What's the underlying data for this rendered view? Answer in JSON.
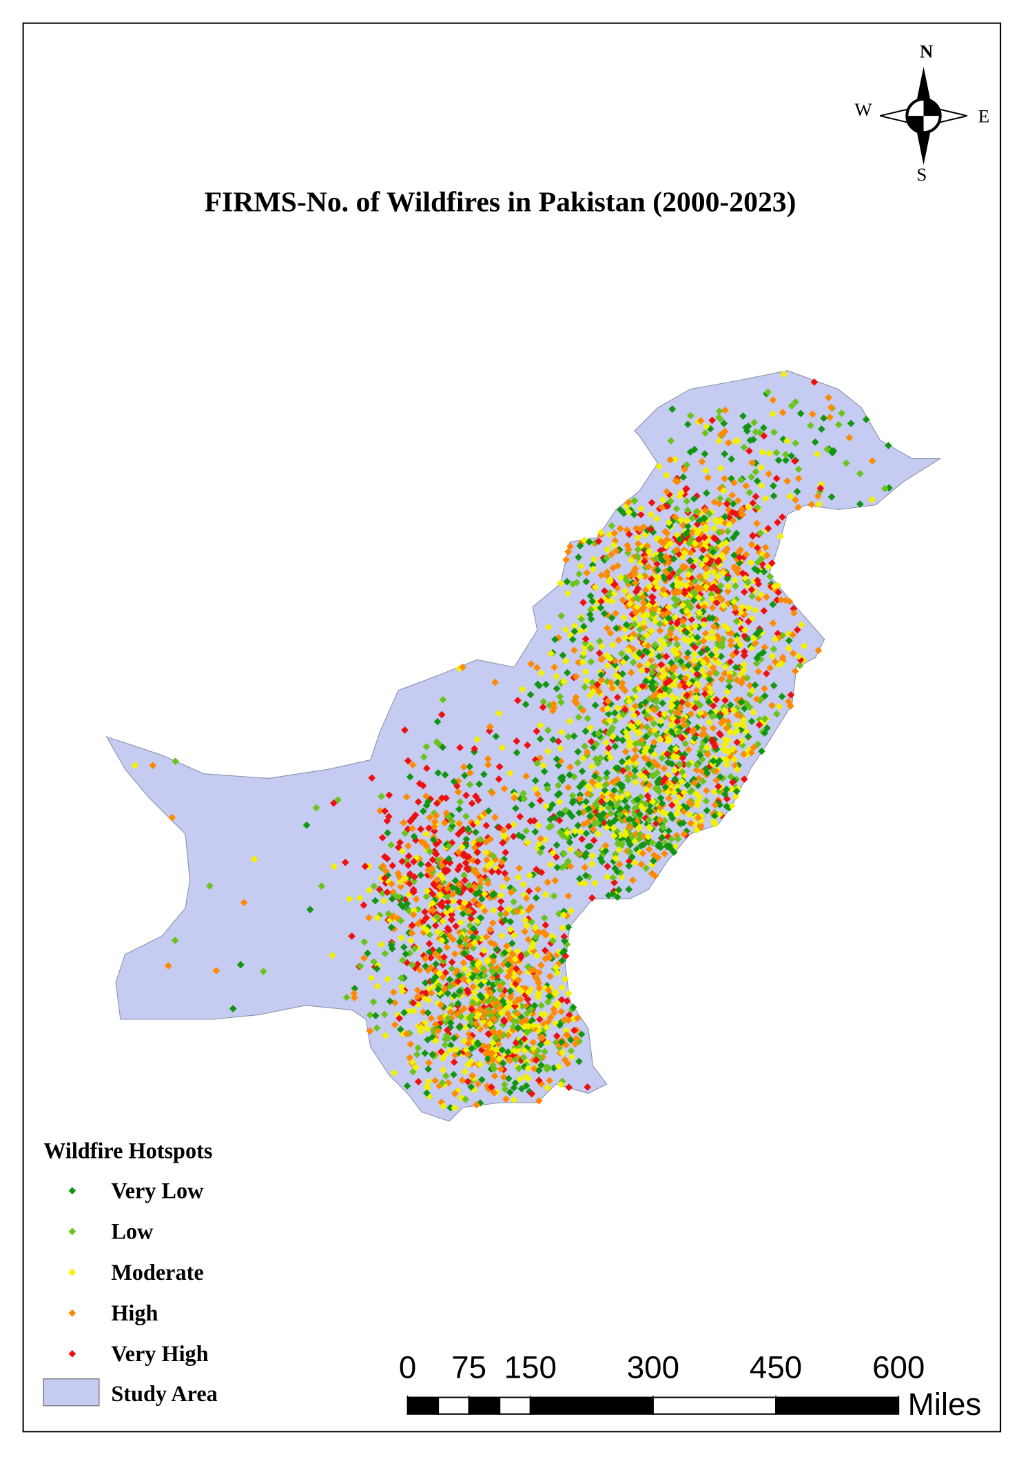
{
  "title": "FIRMS-No. of Wildfires in Pakistan (2000-2023)",
  "compass": {
    "n": "N",
    "e": "E",
    "s": "S",
    "w": "W"
  },
  "legend": {
    "title": "Wildfire Hotspots",
    "items": [
      {
        "label": "Very Low",
        "color": "#129612"
      },
      {
        "label": "Low",
        "color": "#6cc31c"
      },
      {
        "label": "Moderate",
        "color": "#f2f200"
      },
      {
        "label": "High",
        "color": "#ff8a00"
      },
      {
        "label": "Very High",
        "color": "#ee1010"
      }
    ],
    "study_area": {
      "label": "Study Area",
      "color": "#c5cbf1"
    }
  },
  "scale_bar": {
    "ticks": [
      0,
      75,
      150,
      300,
      450,
      600
    ],
    "unit": "Miles"
  }
}
